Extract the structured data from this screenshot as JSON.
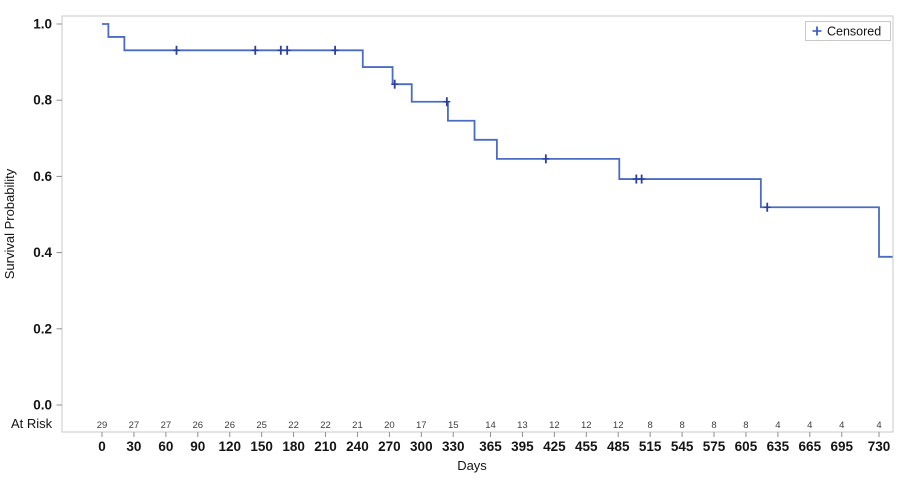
{
  "chart_data": {
    "type": "line",
    "variant": "kaplan_meier_step_plot",
    "title": "",
    "xlabel": "Days",
    "ylabel": "Survival Probability",
    "at_risk_label": "At Risk",
    "legend": {
      "label": "Censored",
      "marker": "plus",
      "position": "top-right-inside"
    },
    "xlim": [
      0,
      730
    ],
    "ylim": [
      0.0,
      1.0
    ],
    "grid": false,
    "x_ticks": [
      0,
      30,
      60,
      90,
      120,
      150,
      180,
      210,
      240,
      270,
      300,
      330,
      365,
      395,
      425,
      455,
      485,
      515,
      545,
      575,
      605,
      635,
      665,
      695,
      730
    ],
    "at_risk_counts": [
      29,
      27,
      27,
      26,
      26,
      25,
      22,
      22,
      21,
      20,
      17,
      15,
      14,
      13,
      12,
      12,
      12,
      8,
      8,
      8,
      8,
      4,
      4,
      4,
      4
    ],
    "y_ticks": [
      {
        "value": 0.0,
        "label": "0.0"
      },
      {
        "value": 0.2,
        "label": "0.2"
      },
      {
        "value": 0.4,
        "label": "0.4"
      },
      {
        "value": 0.6,
        "label": "0.6"
      },
      {
        "value": 0.8,
        "label": "0.8"
      },
      {
        "value": 1.0,
        "label": "1.0"
      }
    ],
    "survival_steps": [
      {
        "day": 0,
        "prob": 1.0
      },
      {
        "day": 6,
        "prob": 0.966
      },
      {
        "day": 21,
        "prob": 0.931
      },
      {
        "day": 245,
        "prob": 0.887
      },
      {
        "day": 273,
        "prob": 0.842
      },
      {
        "day": 291,
        "prob": 0.796
      },
      {
        "day": 325,
        "prob": 0.746
      },
      {
        "day": 350,
        "prob": 0.696
      },
      {
        "day": 371,
        "prob": 0.646
      },
      {
        "day": 486,
        "prob": 0.593
      },
      {
        "day": 619,
        "prob": 0.519
      },
      {
        "day": 730,
        "prob": 0.389
      }
    ],
    "censored_points": [
      {
        "day": 70,
        "prob": 0.931
      },
      {
        "day": 144,
        "prob": 0.931
      },
      {
        "day": 168,
        "prob": 0.931
      },
      {
        "day": 174,
        "prob": 0.931
      },
      {
        "day": 219,
        "prob": 0.931
      },
      {
        "day": 275,
        "prob": 0.842
      },
      {
        "day": 324,
        "prob": 0.796
      },
      {
        "day": 417,
        "prob": 0.646
      },
      {
        "day": 502,
        "prob": 0.593
      },
      {
        "day": 507,
        "prob": 0.593
      },
      {
        "day": 625,
        "prob": 0.519
      }
    ],
    "colors": {
      "line": "#4a6cc3",
      "censor_marker": "#2b3f9f",
      "legend_plus": "#3c5ccc",
      "frame": "#c9c9c9",
      "tick": "#8f8f8f",
      "text": "#141414",
      "at_risk_text": "#3d3d3d"
    }
  }
}
